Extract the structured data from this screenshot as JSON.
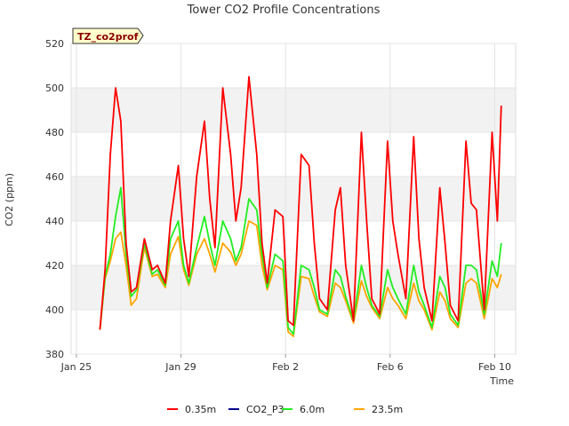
{
  "chart_data": {
    "type": "line",
    "title": "Tower CO2 Profile Concentrations",
    "tag": "TZ_co2prof",
    "xlabel": "Time",
    "ylabel": "CO2 (ppm)",
    "ylim": [
      380,
      520
    ],
    "yticks": [
      380,
      400,
      420,
      440,
      460,
      480,
      500,
      520
    ],
    "x_range_days": [
      -0.2,
      16.8
    ],
    "xticks": [
      {
        "day": 0,
        "label": "Jan 25"
      },
      {
        "day": 4,
        "label": "Jan 29"
      },
      {
        "day": 8,
        "label": "Feb 2"
      },
      {
        "day": 12,
        "label": "Feb 6"
      },
      {
        "day": 16,
        "label": "Feb 10"
      }
    ],
    "series": [
      {
        "name": "0.35m",
        "color": "#ff0000",
        "x": [
          0.9,
          1.1,
          1.3,
          1.5,
          1.7,
          1.9,
          2.1,
          2.3,
          2.6,
          2.9,
          3.1,
          3.4,
          3.6,
          3.9,
          4.1,
          4.3,
          4.6,
          4.9,
          5.1,
          5.3,
          5.6,
          5.9,
          6.1,
          6.3,
          6.6,
          6.9,
          7.1,
          7.3,
          7.6,
          7.9,
          8.1,
          8.3,
          8.6,
          8.9,
          9.1,
          9.3,
          9.6,
          9.9,
          10.1,
          10.3,
          10.6,
          10.9,
          11.1,
          11.3,
          11.6,
          11.9,
          12.1,
          12.3,
          12.6,
          12.9,
          13.1,
          13.3,
          13.6,
          13.9,
          14.1,
          14.3,
          14.6,
          14.9,
          15.1,
          15.3,
          15.6,
          15.9,
          16.1,
          16.25
        ],
        "values": [
          391,
          418,
          470,
          500,
          485,
          430,
          408,
          410,
          432,
          418,
          420,
          412,
          440,
          465,
          432,
          415,
          460,
          485,
          450,
          428,
          500,
          470,
          440,
          455,
          505,
          470,
          430,
          412,
          445,
          442,
          395,
          393,
          470,
          465,
          430,
          405,
          400,
          445,
          455,
          420,
          395,
          480,
          440,
          405,
          398,
          476,
          440,
          425,
          405,
          478,
          432,
          410,
          395,
          455,
          430,
          402,
          395,
          476,
          448,
          445,
          400,
          480,
          440,
          492
        ]
      },
      {
        "name": "CO2_P3",
        "color": "#00008b",
        "x": [],
        "values": []
      },
      {
        "name": "6.0m",
        "color": "#22ee22",
        "x": [
          0.9,
          1.1,
          1.3,
          1.5,
          1.7,
          1.9,
          2.1,
          2.3,
          2.6,
          2.9,
          3.1,
          3.4,
          3.6,
          3.9,
          4.1,
          4.3,
          4.6,
          4.9,
          5.1,
          5.3,
          5.6,
          5.9,
          6.1,
          6.3,
          6.6,
          6.9,
          7.1,
          7.3,
          7.6,
          7.9,
          8.1,
          8.3,
          8.6,
          8.9,
          9.1,
          9.3,
          9.6,
          9.9,
          10.1,
          10.3,
          10.6,
          10.9,
          11.1,
          11.3,
          11.6,
          11.9,
          12.1,
          12.3,
          12.6,
          12.9,
          13.1,
          13.3,
          13.6,
          13.9,
          14.1,
          14.3,
          14.6,
          14.9,
          15.1,
          15.3,
          15.6,
          15.9,
          16.1,
          16.25
        ],
        "values": [
          391,
          415,
          425,
          442,
          455,
          425,
          406,
          409,
          430,
          416,
          418,
          411,
          432,
          440,
          420,
          412,
          428,
          442,
          430,
          420,
          440,
          432,
          422,
          428,
          450,
          445,
          425,
          410,
          425,
          422,
          392,
          389,
          420,
          418,
          410,
          400,
          398,
          418,
          415,
          406,
          395,
          420,
          410,
          402,
          397,
          418,
          410,
          405,
          398,
          420,
          408,
          402,
          392,
          415,
          410,
          398,
          393,
          420,
          420,
          418,
          398,
          422,
          415,
          430
        ]
      },
      {
        "name": "23.5m",
        "color": "#ffa500",
        "x": [
          0.9,
          1.1,
          1.3,
          1.5,
          1.7,
          1.9,
          2.1,
          2.3,
          2.6,
          2.9,
          3.1,
          3.4,
          3.6,
          3.9,
          4.1,
          4.3,
          4.6,
          4.9,
          5.1,
          5.3,
          5.6,
          5.9,
          6.1,
          6.3,
          6.6,
          6.9,
          7.1,
          7.3,
          7.6,
          7.9,
          8.1,
          8.3,
          8.6,
          8.9,
          9.1,
          9.3,
          9.6,
          9.9,
          10.1,
          10.3,
          10.6,
          10.9,
          11.1,
          11.3,
          11.6,
          11.9,
          12.1,
          12.3,
          12.6,
          12.9,
          13.1,
          13.3,
          13.6,
          13.9,
          14.1,
          14.3,
          14.6,
          14.9,
          15.1,
          15.3,
          15.6,
          15.9,
          16.1,
          16.25
        ],
        "values": [
          391,
          414,
          422,
          432,
          435,
          420,
          402,
          405,
          428,
          415,
          416,
          410,
          425,
          433,
          418,
          411,
          425,
          432,
          425,
          417,
          430,
          426,
          420,
          425,
          440,
          438,
          420,
          409,
          420,
          418,
          390,
          388,
          415,
          414,
          406,
          399,
          397,
          412,
          410,
          404,
          394,
          413,
          406,
          401,
          396,
          410,
          405,
          402,
          396,
          412,
          404,
          400,
          391,
          408,
          404,
          396,
          392,
          412,
          414,
          412,
          396,
          414,
          410,
          416
        ]
      }
    ],
    "legend_position": "bottom",
    "grid": true
  }
}
